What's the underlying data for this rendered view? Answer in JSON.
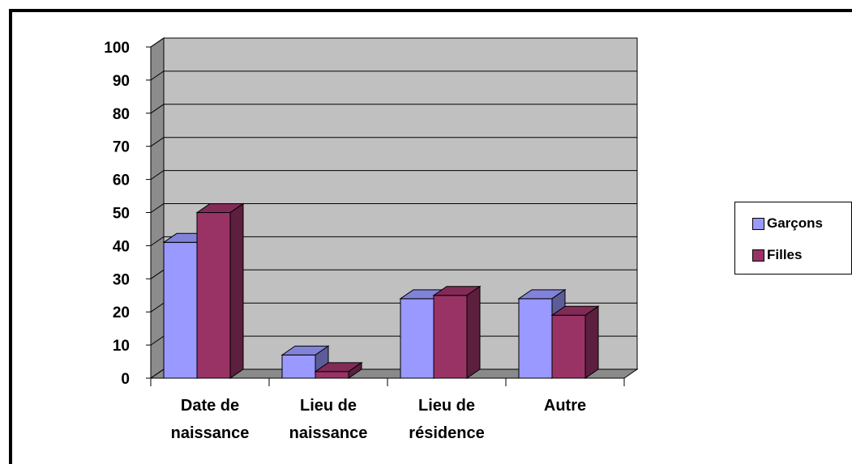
{
  "chart_data": {
    "type": "bar",
    "categories": [
      [
        "Date de",
        "naissance"
      ],
      [
        "Lieu de",
        "naissance"
      ],
      [
        "Lieu de",
        "résidence"
      ],
      [
        "Autre"
      ]
    ],
    "series": [
      {
        "name": "Garçons",
        "values": [
          41,
          7,
          24,
          24
        ],
        "color": "#9999ff"
      },
      {
        "name": "Filles",
        "values": [
          50,
          2,
          25,
          19
        ],
        "color": "#993366"
      }
    ],
    "yticks": [
      0,
      10,
      20,
      30,
      40,
      50,
      60,
      70,
      80,
      90,
      100
    ],
    "ylim": [
      0,
      100
    ],
    "grid": true,
    "three_d": true,
    "legend_position": "right"
  }
}
